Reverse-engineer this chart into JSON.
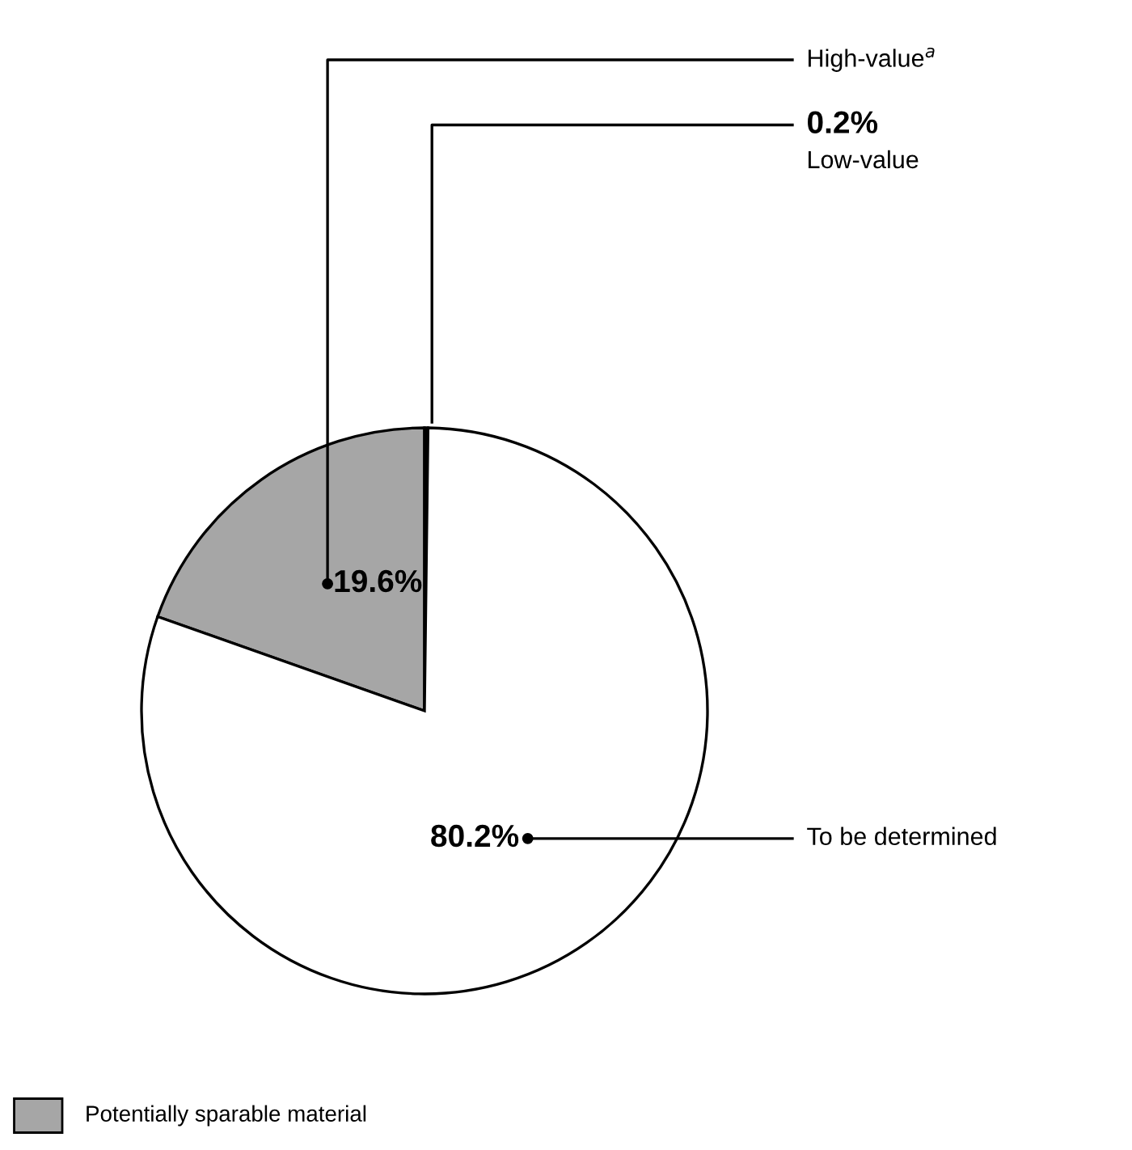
{
  "chart_data": {
    "type": "pie",
    "categories": [
      "High-value$^{a}$",
      "Low-value",
      "To be determined"
    ],
    "values": [
      19.6,
      0.2,
      80.2
    ],
    "value_labels": [
      "19.6%",
      "0.2%",
      "80.2%"
    ],
    "colors": [
      "#a6a6a6",
      "#000000",
      "#ffffff"
    ],
    "annotations": [
      "Potentially sparable material"
    ]
  }
}
